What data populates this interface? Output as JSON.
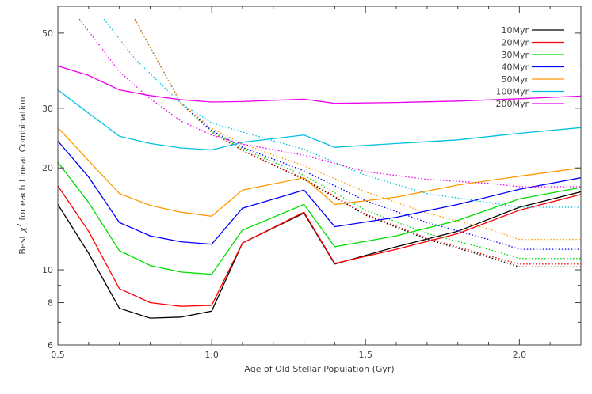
{
  "chart_data": {
    "type": "line",
    "xlabel": "Age of Old Stellar Population (Gyr)",
    "ylabel_prefix": "Best ",
    "ylabel_symbol": "χ",
    "ylabel_exp": "2",
    "ylabel_suffix": " for each Linear Combination",
    "x_scale": "linear",
    "y_scale": "log",
    "xlim": [
      0.5,
      2.2
    ],
    "ylim": [
      6,
      60
    ],
    "x_ticks": [
      0.5,
      1.0,
      1.5,
      2.0
    ],
    "x_tick_labels": [
      "0.5",
      "1.0",
      "1.5",
      "2.0"
    ],
    "y_ticks": [
      6,
      8,
      10,
      20,
      30,
      50
    ],
    "y_tick_labels": [
      "6",
      "8",
      "10",
      "20",
      "30",
      "50"
    ],
    "grid": false,
    "legend_position": "top-right",
    "series": [
      {
        "name": "10Myr",
        "color": "#000000",
        "solid": [
          [
            0.5,
            15.6
          ],
          [
            0.6,
            11.2
          ],
          [
            0.7,
            7.7
          ],
          [
            0.8,
            7.2
          ],
          [
            0.9,
            7.25
          ],
          [
            1.0,
            7.55
          ],
          [
            1.1,
            12.0
          ],
          [
            1.3,
            14.7
          ],
          [
            1.4,
            10.4
          ],
          [
            1.6,
            11.7
          ],
          [
            1.8,
            13.0
          ],
          [
            2.0,
            15.3
          ],
          [
            2.2,
            17.0
          ]
        ],
        "dotted": [
          [
            0.75,
            55.0
          ],
          [
            0.9,
            31.0
          ],
          [
            1.0,
            25.5
          ],
          [
            1.1,
            22.5
          ],
          [
            1.3,
            18.5
          ],
          [
            1.5,
            14.5
          ],
          [
            1.7,
            12.3
          ],
          [
            1.9,
            10.9
          ],
          [
            2.0,
            10.2
          ],
          [
            2.2,
            10.2
          ]
        ]
      },
      {
        "name": "20Myr",
        "color": "#ff0000",
        "solid": [
          [
            0.5,
            17.7
          ],
          [
            0.6,
            13.0
          ],
          [
            0.7,
            8.8
          ],
          [
            0.8,
            8.0
          ],
          [
            0.9,
            7.8
          ],
          [
            1.0,
            7.85
          ],
          [
            1.1,
            12.0
          ],
          [
            1.3,
            14.8
          ],
          [
            1.4,
            10.45
          ],
          [
            1.6,
            11.5
          ],
          [
            1.8,
            12.8
          ],
          [
            2.0,
            15.0
          ],
          [
            2.2,
            16.7
          ]
        ],
        "dotted": [
          [
            0.75,
            55.0
          ],
          [
            0.9,
            31.0
          ],
          [
            1.0,
            25.5
          ],
          [
            1.1,
            22.5
          ],
          [
            1.3,
            18.6
          ],
          [
            1.5,
            14.6
          ],
          [
            1.7,
            12.4
          ],
          [
            1.9,
            11.0
          ],
          [
            2.0,
            10.4
          ],
          [
            2.2,
            10.4
          ]
        ]
      },
      {
        "name": "30Myr",
        "color": "#00dd00",
        "solid": [
          [
            0.5,
            20.8
          ],
          [
            0.6,
            15.8
          ],
          [
            0.7,
            11.4
          ],
          [
            0.8,
            10.3
          ],
          [
            0.9,
            9.85
          ],
          [
            1.0,
            9.7
          ],
          [
            1.1,
            13.1
          ],
          [
            1.3,
            15.6
          ],
          [
            1.4,
            11.7
          ],
          [
            1.6,
            12.6
          ],
          [
            1.8,
            14.0
          ],
          [
            2.0,
            16.2
          ],
          [
            2.2,
            17.5
          ]
        ],
        "dotted": [
          [
            0.75,
            55.0
          ],
          [
            0.9,
            31.0
          ],
          [
            1.0,
            25.5
          ],
          [
            1.1,
            22.8
          ],
          [
            1.3,
            19.0
          ],
          [
            1.5,
            15.0
          ],
          [
            1.7,
            12.8
          ],
          [
            1.9,
            11.5
          ],
          [
            2.0,
            10.8
          ],
          [
            2.2,
            10.8
          ]
        ]
      },
      {
        "name": "40Myr",
        "color": "#0000ff",
        "solid": [
          [
            0.5,
            24.0
          ],
          [
            0.6,
            18.8
          ],
          [
            0.7,
            13.8
          ],
          [
            0.8,
            12.6
          ],
          [
            0.9,
            12.1
          ],
          [
            1.0,
            11.9
          ],
          [
            1.1,
            15.2
          ],
          [
            1.3,
            17.2
          ],
          [
            1.4,
            13.4
          ],
          [
            1.6,
            14.3
          ],
          [
            1.8,
            15.6
          ],
          [
            2.0,
            17.3
          ],
          [
            2.2,
            18.7
          ]
        ],
        "dotted": [
          [
            0.75,
            55.0
          ],
          [
            0.9,
            31.0
          ],
          [
            1.0,
            25.8
          ],
          [
            1.1,
            23.0
          ],
          [
            1.3,
            19.6
          ],
          [
            1.5,
            16.0
          ],
          [
            1.7,
            13.8
          ],
          [
            1.9,
            12.3
          ],
          [
            2.0,
            11.5
          ],
          [
            2.2,
            11.5
          ]
        ]
      },
      {
        "name": "50Myr",
        "color": "#ff9900",
        "solid": [
          [
            0.5,
            26.3
          ],
          [
            0.6,
            21.0
          ],
          [
            0.7,
            16.8
          ],
          [
            0.8,
            15.5
          ],
          [
            0.9,
            14.8
          ],
          [
            1.0,
            14.4
          ],
          [
            1.1,
            17.2
          ],
          [
            1.3,
            18.7
          ],
          [
            1.4,
            15.6
          ],
          [
            1.6,
            16.4
          ],
          [
            1.8,
            17.8
          ],
          [
            2.0,
            18.9
          ],
          [
            2.2,
            20.0
          ]
        ],
        "dotted": [
          [
            0.75,
            55.0
          ],
          [
            0.9,
            31.0
          ],
          [
            1.0,
            26.2
          ],
          [
            1.1,
            23.5
          ],
          [
            1.3,
            20.3
          ],
          [
            1.5,
            17.0
          ],
          [
            1.7,
            14.7
          ],
          [
            1.9,
            13.2
          ],
          [
            2.0,
            12.3
          ],
          [
            2.2,
            12.3
          ]
        ]
      },
      {
        "name": "100Myr",
        "color": "#00c0e0",
        "solid": [
          [
            0.5,
            34.0
          ],
          [
            0.6,
            29.0
          ],
          [
            0.7,
            24.8
          ],
          [
            0.8,
            23.6
          ],
          [
            0.9,
            22.9
          ],
          [
            1.0,
            22.6
          ],
          [
            1.1,
            23.8
          ],
          [
            1.3,
            25.0
          ],
          [
            1.4,
            23.0
          ],
          [
            1.6,
            23.6
          ],
          [
            1.8,
            24.2
          ],
          [
            2.0,
            25.3
          ],
          [
            2.2,
            26.3
          ]
        ],
        "dotted": [
          [
            0.65,
            55.0
          ],
          [
            0.75,
            42.0
          ],
          [
            0.9,
            31.0
          ],
          [
            1.0,
            27.2
          ],
          [
            1.1,
            25.5
          ],
          [
            1.3,
            22.7
          ],
          [
            1.5,
            19.0
          ],
          [
            1.7,
            16.8
          ],
          [
            1.9,
            15.8
          ],
          [
            2.0,
            15.3
          ],
          [
            2.2,
            15.3
          ]
        ]
      },
      {
        "name": "200Myr",
        "color": "#ee00ee",
        "solid": [
          [
            0.5,
            40.0
          ],
          [
            0.6,
            37.5
          ],
          [
            0.7,
            34.0
          ],
          [
            0.8,
            32.7
          ],
          [
            0.9,
            31.8
          ],
          [
            1.0,
            31.3
          ],
          [
            1.1,
            31.4
          ],
          [
            1.3,
            31.9
          ],
          [
            1.4,
            31.0
          ],
          [
            1.6,
            31.2
          ],
          [
            1.8,
            31.5
          ],
          [
            2.0,
            32.0
          ],
          [
            2.2,
            32.6
          ]
        ],
        "dotted": [
          [
            0.57,
            55.0
          ],
          [
            0.7,
            38.5
          ],
          [
            0.8,
            32.0
          ],
          [
            0.9,
            27.5
          ],
          [
            1.0,
            25.0
          ],
          [
            1.1,
            23.5
          ],
          [
            1.3,
            21.8
          ],
          [
            1.5,
            19.5
          ],
          [
            1.7,
            18.5
          ],
          [
            1.9,
            18.0
          ],
          [
            2.0,
            17.6
          ],
          [
            2.2,
            17.6
          ]
        ]
      }
    ]
  }
}
